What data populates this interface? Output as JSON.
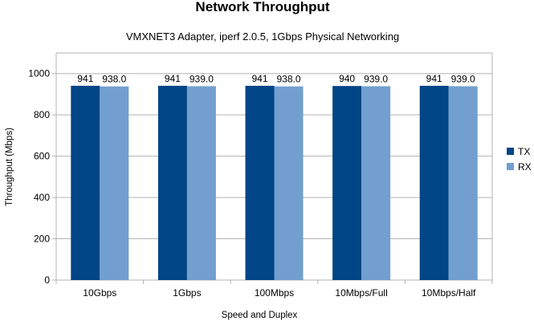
{
  "chart_data": {
    "type": "bar",
    "title": "Network Throughput",
    "subtitle": "VMXNET3 Adapter, iperf 2.0.5, 1Gbps Physical Networking",
    "xlabel": "Speed and Duplex",
    "ylabel": "Throughput (Mbps)",
    "ylim": [
      0,
      1100
    ],
    "yticks": [
      0,
      200,
      400,
      600,
      800,
      1000
    ],
    "grid": true,
    "legend_position": "right",
    "categories": [
      "10Gbps",
      "1Gbps",
      "100Mbps",
      "10Mbps/Full",
      "10Mbps/Half"
    ],
    "series": [
      {
        "name": "TX",
        "color": "#004586",
        "values": [
          941,
          941,
          941,
          940,
          941
        ],
        "labels": [
          "941",
          "941",
          "941",
          "940",
          "941"
        ]
      },
      {
        "name": "RX",
        "color": "#729fcf",
        "values": [
          938.0,
          939.0,
          938.0,
          939.0,
          939.0
        ],
        "labels": [
          "938.0",
          "939.0",
          "938.0",
          "939.0",
          "939.0"
        ]
      }
    ]
  }
}
